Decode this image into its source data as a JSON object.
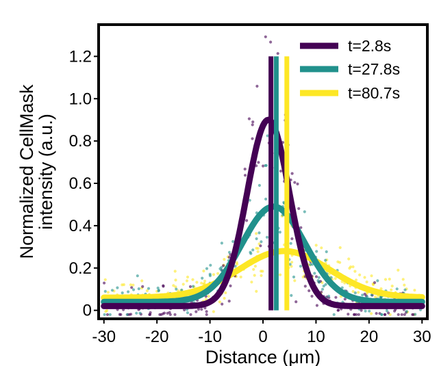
{
  "chart_data": {
    "type": "line",
    "title": "",
    "xlabel": "Distance (μm)",
    "ylabel_line1": "Normalized CellMask",
    "ylabel_line2": "intensity (a.u.)",
    "xlim": [
      -31,
      31
    ],
    "ylim": [
      -0.04,
      1.35
    ],
    "xticks": [
      -30,
      -20,
      -10,
      0,
      10,
      20,
      30
    ],
    "xtick_labels": [
      "-30",
      "-20",
      "-10",
      "0",
      "10",
      "20",
      "30"
    ],
    "yticks": [
      0,
      0.2,
      0.4,
      0.6,
      0.8,
      1.0,
      1.2
    ],
    "ytick_labels": [
      "0",
      "0.2",
      "0.4",
      "0.6",
      "0.8",
      "1.0",
      "1.2"
    ],
    "legend_position": "top-right",
    "series": [
      {
        "name": "t=2.8s",
        "color": "#440154",
        "fit": {
          "baseline": 0.02,
          "amplitude": 0.88,
          "center": 1.0,
          "sigma": 4.0
        },
        "marker_x": 1.5,
        "marker_height": 1.2
      },
      {
        "name": "t=27.8s",
        "color": "#21918c",
        "fit": {
          "baseline": 0.04,
          "amplitude": 0.45,
          "center": 2.0,
          "sigma": 6.0
        },
        "marker_x": 2.5,
        "marker_height": 1.2
      },
      {
        "name": "t=80.7s",
        "color": "#fde725",
        "fit": {
          "baseline": 0.06,
          "amplitude": 0.22,
          "center": 4.0,
          "sigma": 8.5
        },
        "marker_x": 4.5,
        "marker_height": 1.2
      }
    ]
  }
}
